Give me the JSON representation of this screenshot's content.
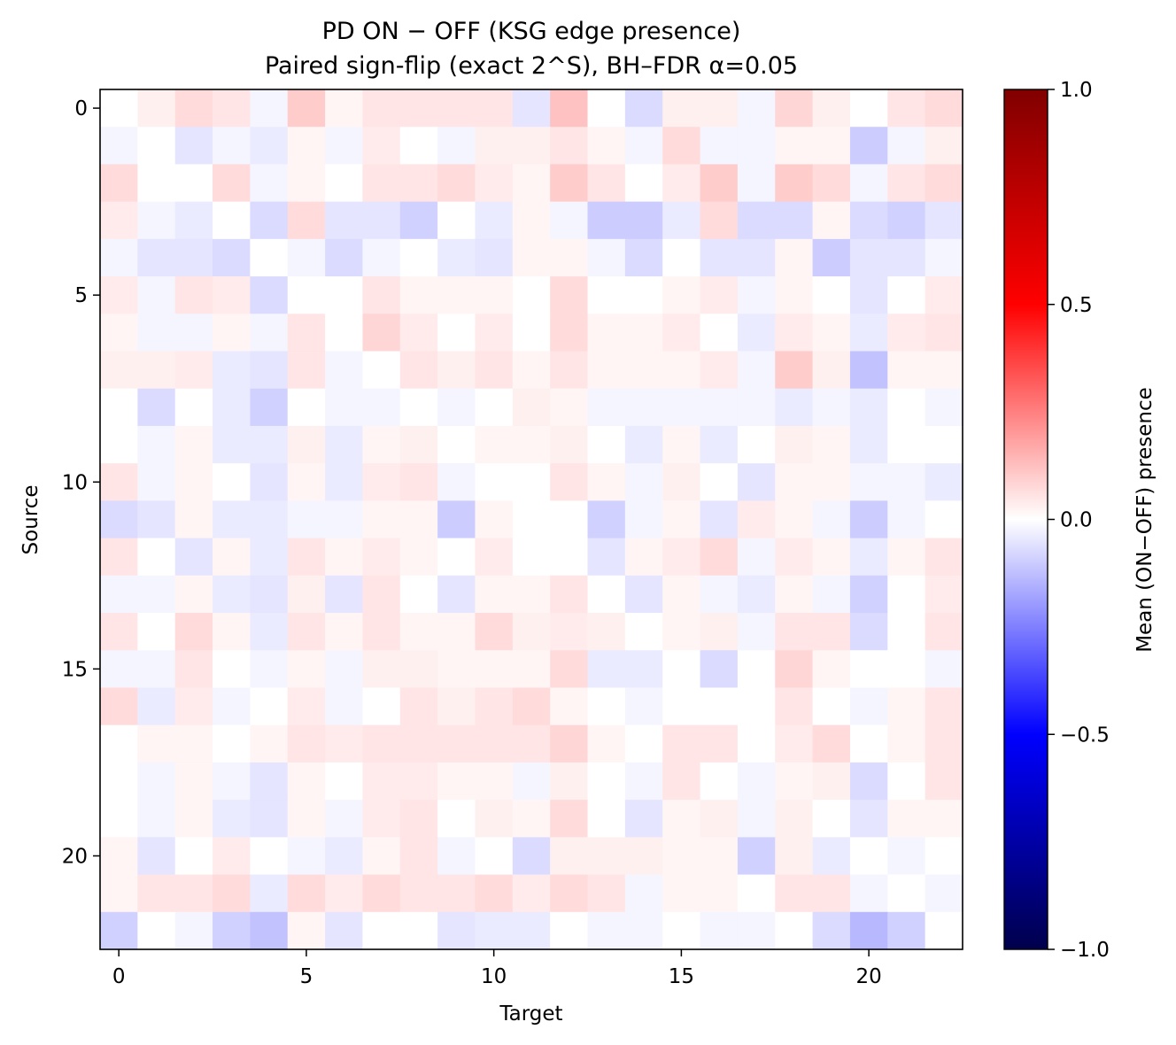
{
  "chart_data": {
    "type": "heatmap",
    "title": "PD ON − OFF (KSG edge presence)",
    "subtitle": "Paired sign-flip (exact 2^S), BH–FDR α=0.05",
    "xlabel": "Target",
    "ylabel": "Source",
    "x_ticks": [
      "0",
      "5",
      "10",
      "15",
      "20"
    ],
    "y_ticks": [
      "0",
      "5",
      "10",
      "15",
      "20"
    ],
    "n_rows": 23,
    "n_cols": 23,
    "colorscale": "seismic",
    "colorbar": {
      "label": "Mean (ON−OFF) presence",
      "vmin": -1.0,
      "vmax": 1.0,
      "ticks": [
        "1.0",
        "0.5",
        "0.0",
        "−0.5",
        "−1.0"
      ]
    },
    "values": [
      [
        0.0,
        0.03,
        0.07,
        0.05,
        -0.02,
        0.1,
        0.02,
        0.05,
        0.05,
        0.05,
        0.05,
        -0.05,
        0.12,
        0.0,
        -0.07,
        0.03,
        0.03,
        -0.02,
        0.08,
        0.03,
        0.0,
        0.05,
        0.07
      ],
      [
        -0.02,
        0.0,
        -0.05,
        -0.02,
        -0.04,
        0.02,
        -0.02,
        0.04,
        0.0,
        -0.02,
        0.03,
        0.03,
        0.05,
        0.02,
        -0.02,
        0.07,
        -0.02,
        -0.02,
        0.02,
        0.02,
        -0.1,
        -0.02,
        0.03
      ],
      [
        0.07,
        0.0,
        0.0,
        0.07,
        -0.02,
        0.02,
        0.0,
        0.05,
        0.05,
        0.07,
        0.04,
        0.02,
        0.1,
        0.05,
        0.0,
        0.04,
        0.1,
        -0.02,
        0.1,
        0.07,
        -0.02,
        0.05,
        0.07
      ],
      [
        0.04,
        -0.02,
        -0.04,
        0.0,
        -0.07,
        0.07,
        -0.05,
        -0.05,
        -0.09,
        0.0,
        -0.04,
        0.02,
        -0.02,
        -0.1,
        -0.1,
        -0.04,
        0.07,
        -0.07,
        -0.07,
        0.02,
        -0.07,
        -0.09,
        -0.05
      ],
      [
        -0.02,
        -0.05,
        -0.05,
        -0.07,
        0.0,
        -0.02,
        -0.07,
        -0.02,
        0.0,
        -0.04,
        -0.05,
        0.02,
        0.02,
        -0.02,
        -0.07,
        0.0,
        -0.05,
        -0.05,
        0.02,
        -0.1,
        -0.05,
        -0.05,
        -0.02
      ],
      [
        0.04,
        -0.02,
        0.05,
        0.04,
        -0.07,
        0.0,
        0.0,
        0.05,
        0.02,
        0.02,
        0.02,
        0.0,
        0.07,
        0.0,
        0.0,
        0.02,
        0.04,
        -0.02,
        0.02,
        0.0,
        -0.05,
        0.0,
        0.04
      ],
      [
        0.02,
        -0.02,
        -0.02,
        0.02,
        -0.02,
        0.05,
        0.0,
        0.08,
        0.04,
        0.0,
        0.04,
        0.0,
        0.07,
        0.02,
        0.02,
        0.04,
        0.0,
        -0.04,
        0.04,
        0.02,
        -0.04,
        0.04,
        0.05
      ],
      [
        0.03,
        0.03,
        0.04,
        -0.04,
        -0.05,
        0.05,
        -0.02,
        0.0,
        0.05,
        0.03,
        0.05,
        0.02,
        0.05,
        0.02,
        0.02,
        0.02,
        0.04,
        -0.02,
        0.1,
        0.03,
        -0.12,
        0.02,
        0.02
      ],
      [
        0.0,
        -0.07,
        0.0,
        -0.04,
        -0.09,
        0.0,
        -0.02,
        -0.02,
        0.0,
        -0.02,
        0.0,
        0.03,
        0.02,
        -0.02,
        -0.02,
        -0.02,
        -0.02,
        -0.02,
        -0.04,
        -0.02,
        -0.04,
        0.0,
        -0.02
      ],
      [
        0.0,
        -0.02,
        0.02,
        -0.04,
        -0.04,
        0.03,
        -0.04,
        0.02,
        0.03,
        0.0,
        0.02,
        0.02,
        0.03,
        0.0,
        -0.04,
        0.02,
        -0.04,
        0.0,
        0.03,
        0.02,
        -0.04,
        0.0,
        0.0
      ],
      [
        0.05,
        -0.02,
        0.02,
        0.0,
        -0.05,
        0.02,
        -0.04,
        0.04,
        0.05,
        -0.02,
        0.0,
        0.0,
        0.05,
        0.02,
        -0.02,
        0.03,
        0.0,
        -0.05,
        0.02,
        0.02,
        -0.02,
        -0.02,
        -0.04
      ],
      [
        -0.07,
        -0.05,
        0.02,
        -0.04,
        -0.04,
        -0.02,
        -0.02,
        0.02,
        0.02,
        -0.1,
        0.02,
        0.0,
        0.0,
        -0.09,
        -0.02,
        0.02,
        -0.05,
        0.04,
        0.02,
        -0.02,
        -0.1,
        -0.02,
        0.0
      ],
      [
        0.05,
        0.0,
        -0.05,
        0.02,
        -0.04,
        0.05,
        0.02,
        0.04,
        0.02,
        0.0,
        0.04,
        0.0,
        0.0,
        -0.05,
        0.02,
        0.04,
        0.07,
        -0.02,
        0.04,
        0.02,
        -0.04,
        0.02,
        0.05
      ],
      [
        -0.02,
        -0.02,
        0.02,
        -0.04,
        -0.05,
        0.03,
        -0.05,
        0.05,
        0.0,
        -0.05,
        0.02,
        0.02,
        0.05,
        0.0,
        -0.05,
        0.02,
        -0.02,
        -0.04,
        0.02,
        -0.02,
        -0.09,
        0.0,
        0.04
      ],
      [
        0.05,
        0.0,
        0.07,
        0.02,
        -0.04,
        0.05,
        0.02,
        0.05,
        0.02,
        0.02,
        0.07,
        0.03,
        0.04,
        0.03,
        0.0,
        0.02,
        0.03,
        -0.02,
        0.05,
        0.05,
        -0.07,
        0.0,
        0.05
      ],
      [
        -0.02,
        -0.02,
        0.05,
        0.0,
        -0.02,
        0.02,
        -0.02,
        0.03,
        0.03,
        0.02,
        0.02,
        0.02,
        0.07,
        -0.04,
        -0.04,
        0.0,
        -0.07,
        0.0,
        0.08,
        0.02,
        0.0,
        0.0,
        -0.02
      ],
      [
        0.07,
        -0.04,
        0.04,
        -0.02,
        0.0,
        0.04,
        -0.02,
        0.0,
        0.05,
        0.03,
        0.05,
        0.07,
        0.02,
        0.0,
        -0.02,
        0.0,
        0.0,
        0.0,
        0.05,
        0.0,
        -0.02,
        0.02,
        0.05
      ],
      [
        0.0,
        0.02,
        0.02,
        0.0,
        0.02,
        0.05,
        0.04,
        0.05,
        0.05,
        0.05,
        0.05,
        0.05,
        0.08,
        0.02,
        0.0,
        0.05,
        0.05,
        0.0,
        0.04,
        0.07,
        0.0,
        0.02,
        0.05
      ],
      [
        0.0,
        -0.02,
        0.02,
        -0.02,
        -0.05,
        0.02,
        0.0,
        0.04,
        0.04,
        0.02,
        0.02,
        -0.02,
        0.03,
        0.0,
        -0.02,
        0.05,
        0.0,
        -0.02,
        0.02,
        0.03,
        -0.07,
        0.0,
        0.05
      ],
      [
        0.0,
        -0.02,
        0.02,
        -0.04,
        -0.05,
        0.02,
        -0.02,
        0.04,
        0.05,
        0.0,
        0.03,
        0.02,
        0.07,
        0.0,
        -0.05,
        0.02,
        0.03,
        -0.02,
        0.03,
        0.0,
        -0.05,
        0.02,
        0.02
      ],
      [
        0.02,
        -0.05,
        0.0,
        0.04,
        0.0,
        -0.02,
        -0.04,
        0.02,
        0.05,
        -0.02,
        0.0,
        -0.07,
        0.03,
        0.03,
        0.03,
        0.02,
        0.02,
        -0.09,
        0.03,
        -0.04,
        0.0,
        -0.02,
        0.0
      ],
      [
        0.02,
        0.05,
        0.05,
        0.07,
        -0.04,
        0.07,
        0.04,
        0.07,
        0.05,
        0.05,
        0.07,
        0.04,
        0.07,
        0.05,
        -0.02,
        0.02,
        0.02,
        0.0,
        0.05,
        0.05,
        -0.02,
        0.0,
        -0.02
      ],
      [
        -0.09,
        0.0,
        -0.02,
        -0.09,
        -0.12,
        0.02,
        -0.05,
        0.0,
        0.0,
        -0.05,
        -0.04,
        -0.04,
        0.0,
        -0.02,
        -0.02,
        0.0,
        -0.02,
        -0.02,
        0.0,
        -0.07,
        -0.14,
        -0.09,
        0.0
      ]
    ]
  }
}
